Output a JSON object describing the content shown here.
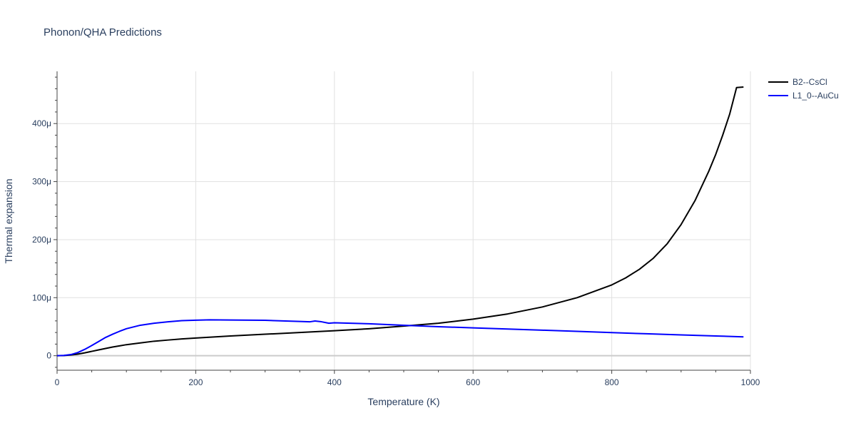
{
  "chart_data": {
    "type": "line",
    "title": "Phonon/QHA Predictions",
    "xlabel": "Temperature (K)",
    "ylabel": "Thermal expansion",
    "xlim": [
      0,
      1000
    ],
    "ylim": [
      -2.5e-05,
      0.00049
    ],
    "x_ticks": [
      0,
      200,
      400,
      600,
      800,
      1000
    ],
    "x_tick_labels": [
      "0",
      "200",
      "400",
      "600",
      "800",
      "1000"
    ],
    "y_ticks": [
      0,
      0.0001,
      0.0002,
      0.0003,
      0.0004
    ],
    "y_tick_labels": [
      "0",
      "100μ",
      "200μ",
      "300μ",
      "400μ"
    ],
    "grid": true,
    "legend_position": "top-right",
    "series": [
      {
        "name": "B2--CsCl",
        "color": "#000000",
        "x": [
          0,
          10,
          20,
          30,
          40,
          50,
          60,
          70,
          80,
          90,
          100,
          120,
          140,
          160,
          180,
          200,
          250,
          300,
          350,
          400,
          450,
          500,
          550,
          600,
          650,
          700,
          750,
          800,
          820,
          840,
          860,
          880,
          900,
          920,
          940,
          950,
          960,
          970,
          980,
          990
        ],
        "y": [
          0,
          3e-07,
          1.2e-06,
          2.8e-06,
          5e-06,
          7.5e-06,
          1e-05,
          1.25e-05,
          1.5e-05,
          1.7e-05,
          1.9e-05,
          2.2e-05,
          2.5e-05,
          2.7e-05,
          2.9e-05,
          3.05e-05,
          3.4e-05,
          3.7e-05,
          4e-05,
          4.3e-05,
          4.65e-05,
          5.1e-05,
          5.6e-05,
          6.3e-05,
          7.2e-05,
          8.4e-05,
          0.0001,
          0.000122,
          0.000134,
          0.000149,
          0.000168,
          0.000193,
          0.000226,
          0.000267,
          0.000318,
          0.000347,
          0.00038,
          0.000416,
          0.000462,
          0.000463
        ]
      },
      {
        "name": "L1_0--AuCu",
        "color": "#0000ff",
        "x": [
          0,
          10,
          20,
          30,
          40,
          50,
          60,
          70,
          80,
          90,
          100,
          120,
          140,
          160,
          180,
          200,
          220,
          250,
          300,
          350,
          365,
          372,
          380,
          392,
          400,
          450,
          500,
          550,
          600,
          650,
          700,
          750,
          800,
          850,
          900,
          950,
          990
        ],
        "y": [
          0,
          5e-07,
          2e-06,
          5.5e-06,
          1.1e-05,
          1.75e-05,
          2.45e-05,
          3.15e-05,
          3.7e-05,
          4.2e-05,
          4.65e-05,
          5.25e-05,
          5.6e-05,
          5.85e-05,
          6.05e-05,
          6.12e-05,
          6.18e-05,
          6.15e-05,
          6.1e-05,
          5.9e-05,
          5.85e-05,
          5.98e-05,
          5.88e-05,
          5.6e-05,
          5.68e-05,
          5.5e-05,
          5.25e-05,
          5e-05,
          4.8e-05,
          4.6e-05,
          4.4e-05,
          4.2e-05,
          3.98e-05,
          3.78e-05,
          3.58e-05,
          3.4e-05,
          3.25e-05
        ]
      }
    ]
  }
}
